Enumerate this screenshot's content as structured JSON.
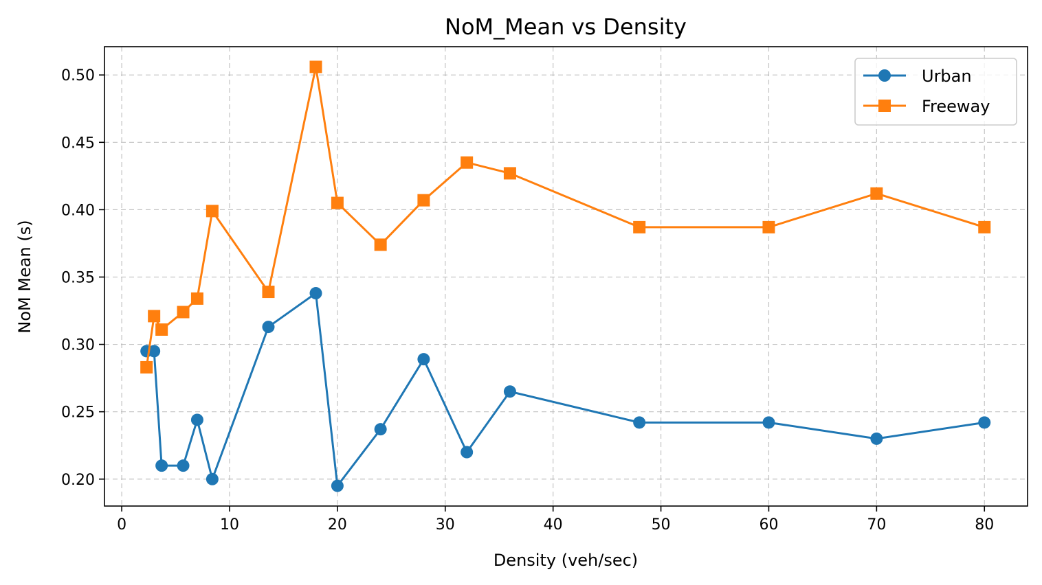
{
  "chart_data": {
    "type": "line",
    "title": "NoM_Mean vs Density",
    "xlabel": "Density (veh/sec)",
    "ylabel": "NoM Mean (s)",
    "xlim": [
      -1.6,
      84.0
    ],
    "ylim": [
      0.18,
      0.521
    ],
    "xticks": [
      0,
      10,
      20,
      30,
      40,
      50,
      60,
      70,
      80
    ],
    "xtick_labels": [
      "0",
      "10",
      "20",
      "30",
      "40",
      "50",
      "60",
      "70",
      "80"
    ],
    "yticks": [
      0.2,
      0.25,
      0.3,
      0.35,
      0.4,
      0.45,
      0.5
    ],
    "ytick_labels": [
      "0.20",
      "0.25",
      "0.30",
      "0.35",
      "0.40",
      "0.45",
      "0.50"
    ],
    "grid": true,
    "legend_position": "top-right",
    "series": [
      {
        "name": "Urban",
        "color": "#1f77b4",
        "marker": "circle",
        "x": [
          2.3,
          3.0,
          3.7,
          5.7,
          7.0,
          8.4,
          13.6,
          18.0,
          20.0,
          24.0,
          28.0,
          32.0,
          36.0,
          48.0,
          60.0,
          70.0,
          80.0
        ],
        "y": [
          0.295,
          0.295,
          0.21,
          0.21,
          0.244,
          0.2,
          0.313,
          0.338,
          0.195,
          0.237,
          0.289,
          0.22,
          0.265,
          0.242,
          0.242,
          0.23,
          0.242
        ]
      },
      {
        "name": "Freeway",
        "color": "#ff7f0e",
        "marker": "square",
        "x": [
          2.3,
          3.0,
          3.7,
          5.7,
          7.0,
          8.4,
          13.6,
          18.0,
          20.0,
          24.0,
          28.0,
          32.0,
          36.0,
          48.0,
          60.0,
          70.0,
          80.0
        ],
        "y": [
          0.283,
          0.321,
          0.311,
          0.324,
          0.334,
          0.399,
          0.339,
          0.506,
          0.405,
          0.374,
          0.407,
          0.435,
          0.427,
          0.387,
          0.387,
          0.412,
          0.387
        ]
      }
    ]
  }
}
